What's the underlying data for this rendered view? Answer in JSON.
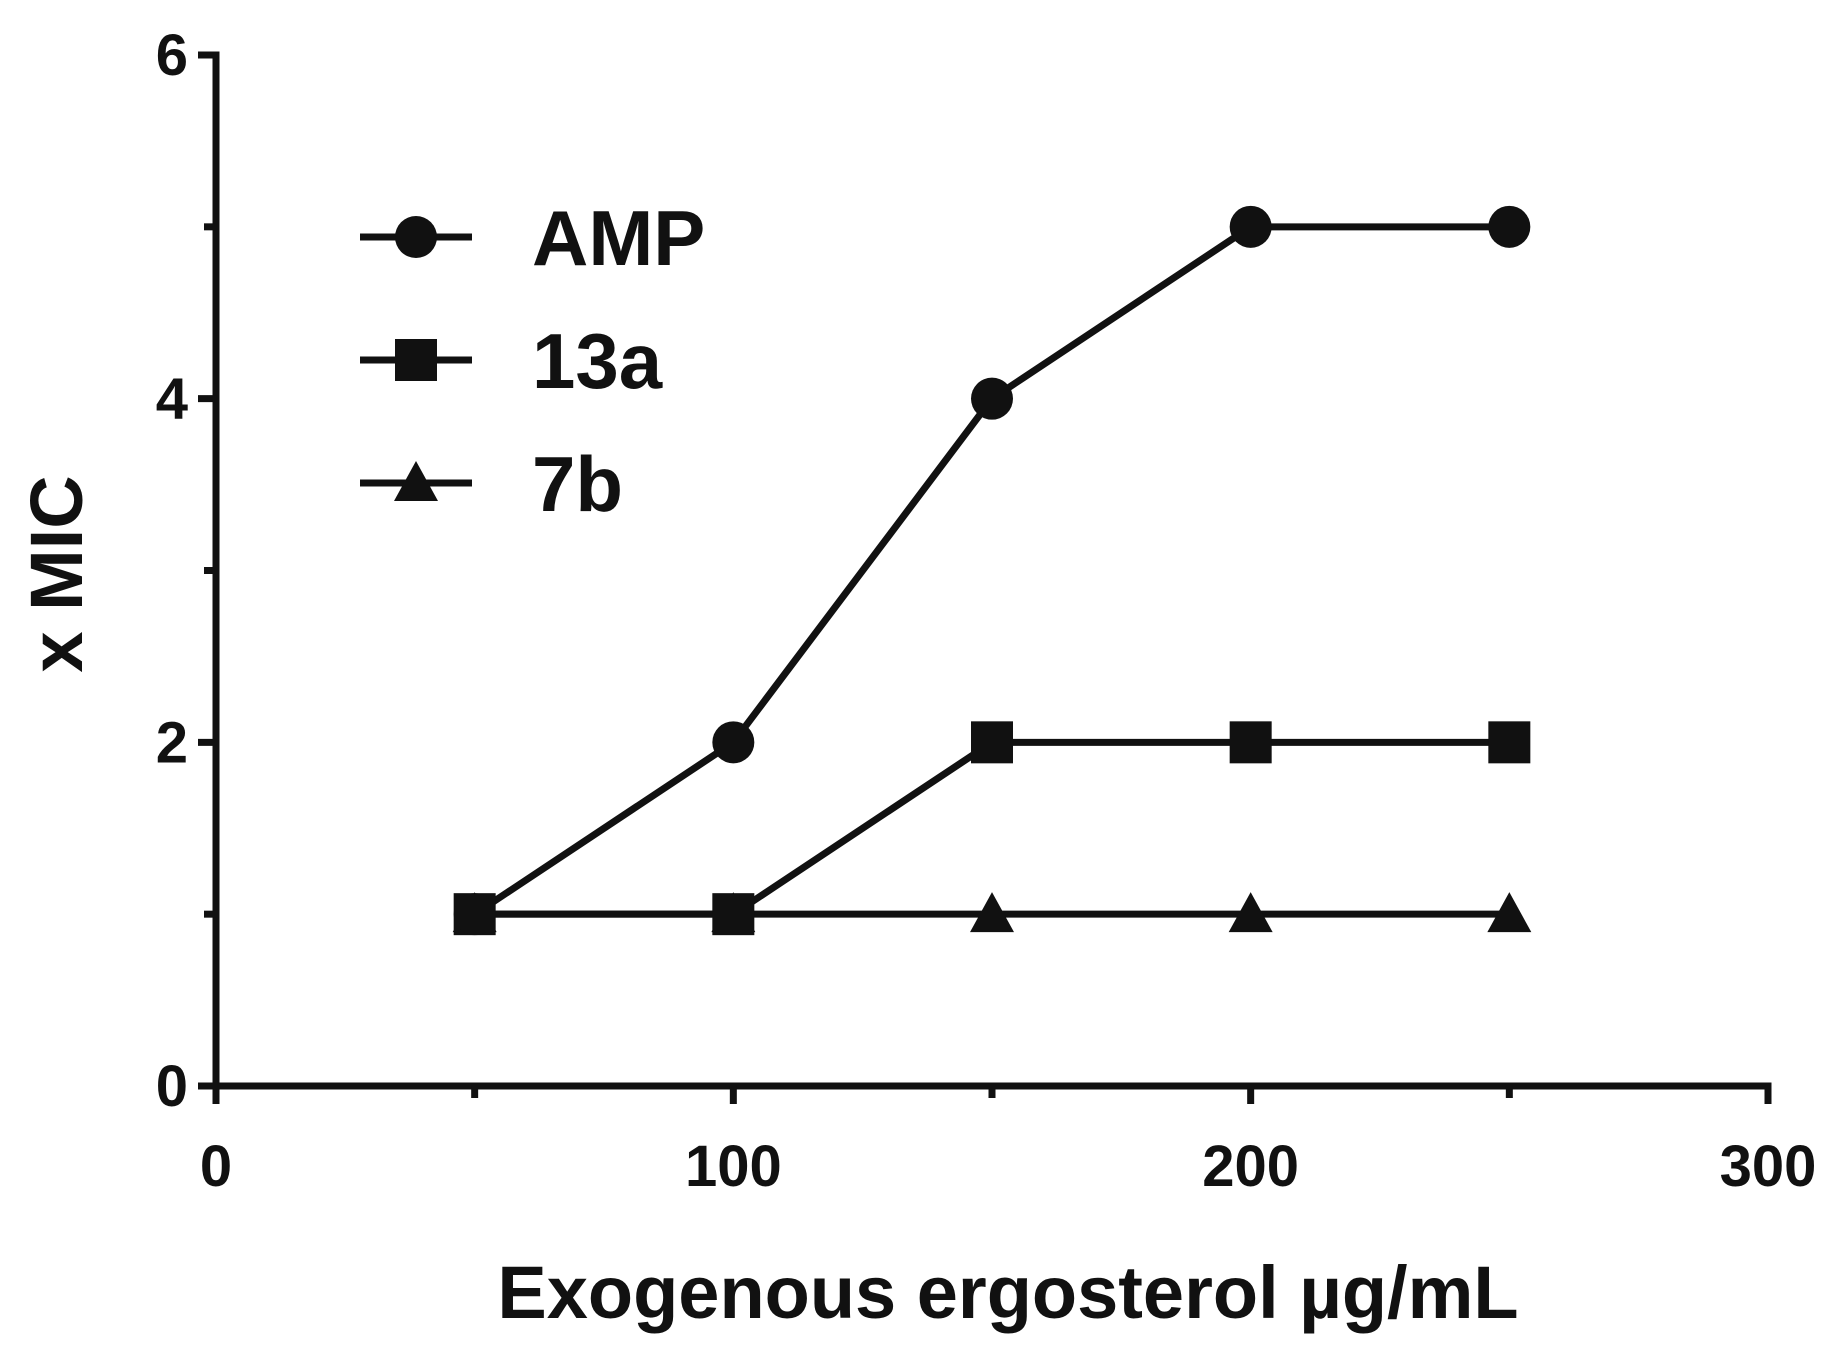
{
  "chart_data": {
    "type": "line",
    "title": "",
    "xlabel": "Exogenous ergosterol µg/mL",
    "ylabel": "x MIC",
    "xlim": [
      0,
      300
    ],
    "ylim": [
      0,
      6
    ],
    "x_ticks": [
      0,
      100,
      200,
      300
    ],
    "x_tick_labels": [
      "0",
      "100",
      "200",
      "300"
    ],
    "x_minor_ticks": [
      50,
      150,
      250
    ],
    "y_ticks": [
      0,
      2,
      4,
      6
    ],
    "y_tick_labels": [
      "0",
      "2",
      "4",
      "6"
    ],
    "y_minor_ticks": [
      1,
      3,
      5
    ],
    "grid": false,
    "legend_position": "top-left",
    "series": [
      {
        "name": "AMP",
        "marker": "circle",
        "x": [
          50,
          100,
          150,
          200,
          250
        ],
        "y": [
          1,
          2,
          4,
          5,
          5
        ]
      },
      {
        "name": "13a",
        "marker": "square",
        "x": [
          50,
          100,
          150,
          200,
          250
        ],
        "y": [
          1,
          1,
          2,
          2,
          2
        ]
      },
      {
        "name": "7b",
        "marker": "triangle",
        "x": [
          50,
          100,
          150,
          200,
          250
        ],
        "y": [
          1,
          1,
          1,
          1,
          1
        ]
      }
    ],
    "color": "#111111"
  }
}
